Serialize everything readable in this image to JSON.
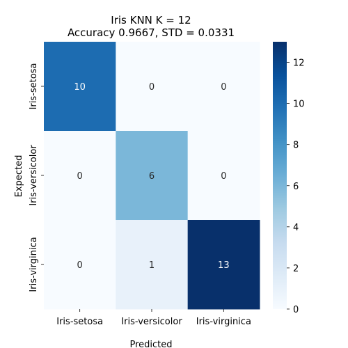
{
  "chart_data": {
    "type": "heatmap",
    "title_line1": "Iris KNN K = 12",
    "title_line2": "Accuracy 0.9667, STD = 0.0331",
    "xlabel": "Predicted",
    "ylabel": "Expected",
    "x_categories": [
      "Iris-setosa",
      "Iris-versicolor",
      "Iris-virginica"
    ],
    "y_categories": [
      "Iris-setosa",
      "Iris-versicolor",
      "Iris-virginica"
    ],
    "matrix": [
      [
        10,
        0,
        0
      ],
      [
        0,
        6,
        0
      ],
      [
        0,
        1,
        13
      ]
    ],
    "colormap": "Blues",
    "colorbar": {
      "min": 0,
      "max": 13,
      "ticks": [
        0,
        2,
        4,
        6,
        8,
        10,
        12
      ]
    }
  }
}
